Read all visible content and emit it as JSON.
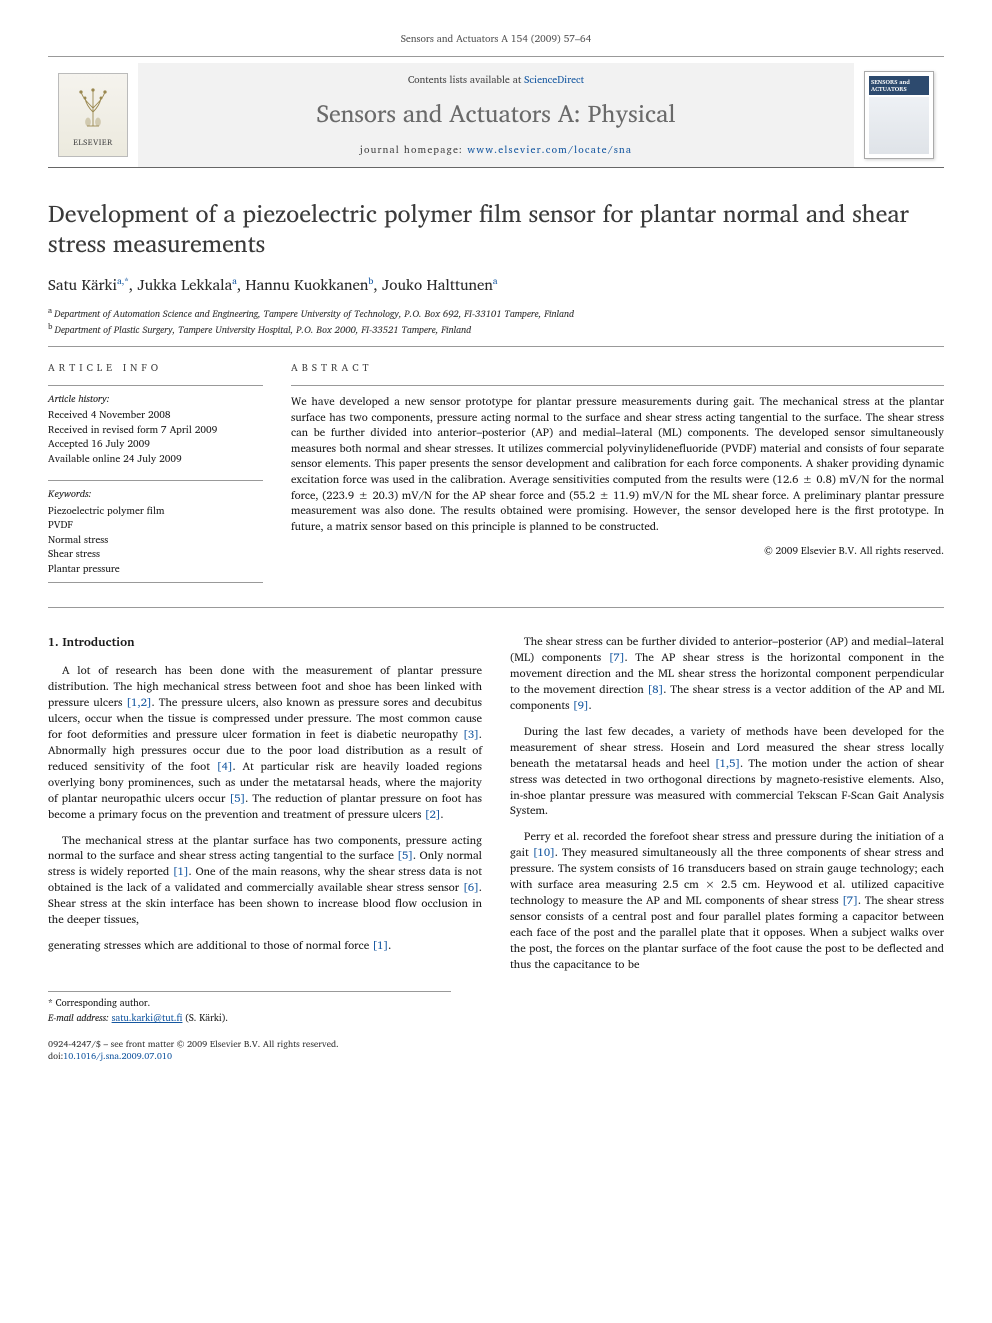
{
  "running_head": "Sensors and Actuators A 154 (2009) 57–64",
  "header": {
    "contents_prefix": "Contents lists available at ",
    "contents_link": "ScienceDirect",
    "journal_name": "Sensors and Actuators A: Physical",
    "homepage_prefix": "journal homepage: ",
    "homepage_url": "www.elsevier.com/locate/sna",
    "elsevier_brand": "ELSEVIER",
    "cover_title": "SENSORS and ACTUATORS"
  },
  "title": "Development of a piezoelectric polymer film sensor for plantar normal and shear stress measurements",
  "authors_html": "Satu Kärki<sup>a,</sup>*, Jukka Lekkala<sup>a</sup>, Hannu Kuokkanen<sup>b</sup>, Jouko Halttunen<sup>a</sup>",
  "authors": [
    {
      "name": "Satu Kärki",
      "marks": "a,*"
    },
    {
      "name": "Jukka Lekkala",
      "marks": "a"
    },
    {
      "name": "Hannu Kuokkanen",
      "marks": "b"
    },
    {
      "name": "Jouko Halttunen",
      "marks": "a"
    }
  ],
  "affiliations": [
    {
      "mark": "a",
      "text": "Department of Automation Science and Engineering, Tampere University of Technology, P.O. Box 692, FI-33101 Tampere, Finland"
    },
    {
      "mark": "b",
      "text": "Department of Plastic Surgery, Tampere University Hospital, P.O. Box 2000, FI-33521 Tampere, Finland"
    }
  ],
  "article_info": {
    "heading": "article info",
    "history_head": "Article history:",
    "history": [
      "Received 4 November 2008",
      "Received in revised form 7 April 2009",
      "Accepted 16 July 2009",
      "Available online 24 July 2009"
    ],
    "keywords_head": "Keywords:",
    "keywords": [
      "Piezoelectric polymer film",
      "PVDF",
      "Normal stress",
      "Shear stress",
      "Plantar pressure"
    ]
  },
  "abstract": {
    "heading": "abstract",
    "text": "We have developed a new sensor prototype for plantar pressure measurements during gait. The mechanical stress at the plantar surface has two components, pressure acting normal to the surface and shear stress acting tangential to the surface. The shear stress can be further divided into anterior–posterior (AP) and medial–lateral (ML) components. The developed sensor simultaneously measures both normal and shear stresses. It utilizes commercial polyvinylidenefluoride (PVDF) material and consists of four separate sensor elements. This paper presents the sensor development and calibration for each force components. A shaker providing dynamic excitation force was used in the calibration. Average sensitivities computed from the results were (12.6 ± 0.8) mV/N for the normal force, (223.9 ± 20.3) mV/N for the AP shear force and (55.2 ± 11.9) mV/N for the ML shear force. A preliminary plantar pressure measurement was also done. The results obtained were promising. However, the sensor developed here is the first prototype. In future, a matrix sensor based on this principle is planned to be constructed.",
    "copyright": "© 2009 Elsevier B.V. All rights reserved."
  },
  "body": {
    "section1_head": "1.  Introduction",
    "p1": "A lot of research has been done with the measurement of plantar pressure distribution. The high mechanical stress between foot and shoe has been linked with pressure ulcers [1,2]. The pressure ulcers, also known as pressure sores and decubitus ulcers, occur when the tissue is compressed under pressure. The most common cause for foot deformities and pressure ulcer formation in feet is diabetic neuropathy [3]. Abnormally high pressures occur due to the poor load distribution as a result of reduced sensitivity of the foot [4]. At particular risk are heavily loaded regions overlying bony prominences, such as under the metatarsal heads, where the majority of plantar neuropathic ulcers occur [5]. The reduction of plantar pressure on foot has become a primary focus on the prevention and treatment of pressure ulcers [2].",
    "p2": "The mechanical stress at the plantar surface has two components, pressure acting normal to the surface and shear stress acting tangential to the surface [5]. Only normal stress is widely reported [1]. One of the main reasons, why the shear stress data is not obtained is the lack of a validated and commercially available shear stress sensor [6]. Shear stress at the skin interface has been shown to increase blood flow occlusion in the deeper tissues,",
    "p3": "generating stresses which are additional to those of normal force [1].",
    "p4": "The shear stress can be further divided to anterior–posterior (AP) and medial–lateral (ML) components [7]. The AP shear stress is the horizontal component in the movement direction and the ML shear stress the horizontal component perpendicular to the movement direction [8]. The shear stress is a vector addition of the AP and ML components [9].",
    "p5": "During the last few decades, a variety of methods have been developed for the measurement of shear stress. Hosein and Lord measured the shear stress locally beneath the metatarsal heads and heel [1,5]. The motion under the action of shear stress was detected in two orthogonal directions by magneto-resistive elements. Also, in-shoe plantar pressure was measured with commercial Tekscan F-Scan Gait Analysis System.",
    "p6": "Perry et al. recorded the forefoot shear stress and pressure during the initiation of a gait [10]. They measured simultaneously all the three components of shear stress and pressure. The system consists of 16 transducers based on strain gauge technology; each with surface area measuring 2.5 cm × 2.5 cm. Heywood et al. utilized capacitive technology to measure the AP and ML components of shear stress [7]. The shear stress sensor consists of a central post and four parallel plates forming a capacitor between each face of the post and the parallel plate that it opposes. When a subject walks over the post, the forces on the plantar surface of the foot cause the post to be deflected and thus the capacitance to be"
  },
  "footnotes": {
    "corr": "* Corresponding author.",
    "email_label": "E-mail address:",
    "email": "satu.karki@tut.fi",
    "email_who": "(S. Kärki)."
  },
  "meta": {
    "issn_line": "0924-4247/$ – see front matter © 2009 Elsevier B.V. All rights reserved.",
    "doi_label": "doi:",
    "doi": "10.1016/j.sna.2009.07.010"
  },
  "colors": {
    "link": "#1557a0",
    "rule": "#999999",
    "journal_gray": "#6a6a6a",
    "header_bg": "#f2f2f2"
  }
}
